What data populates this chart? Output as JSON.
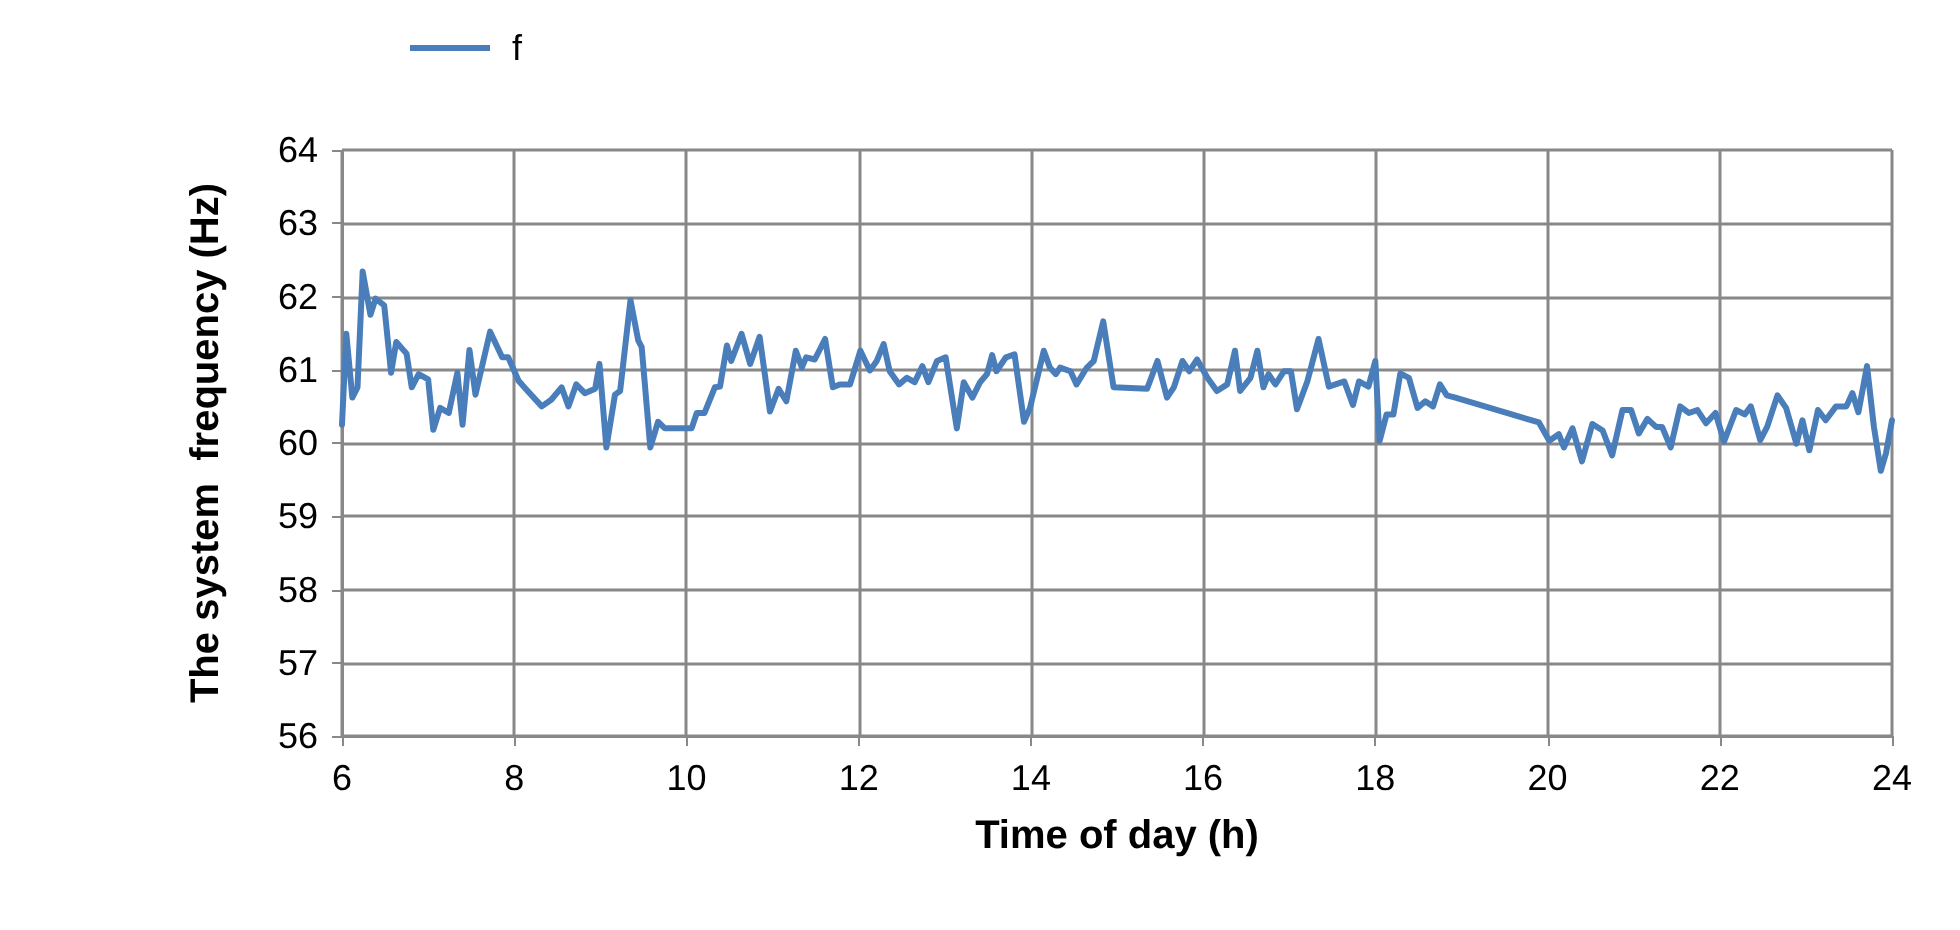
{
  "chart_data": {
    "type": "line",
    "xlabel": "Time of day (h)",
    "ylabel": "The system  frequency (Hz)",
    "xlim": [
      6,
      24
    ],
    "xticks": [
      6,
      8,
      10,
      12,
      14,
      16,
      18,
      20,
      22,
      24
    ],
    "ylim": [
      56,
      64
    ],
    "yticks": [
      56,
      57,
      58,
      59,
      60,
      61,
      62,
      63,
      64
    ],
    "grid": true,
    "legend": "top left",
    "marker": "none",
    "line_style": "solid",
    "series": [
      {
        "name": "f",
        "color": "#4a7ebb",
        "x": [
          6.0,
          6.05,
          6.12,
          6.18,
          6.24,
          6.33,
          6.39,
          6.49,
          6.57,
          6.63,
          6.75,
          6.81,
          6.89,
          7.0,
          7.06,
          7.14,
          7.24,
          7.34,
          7.4,
          7.48,
          7.55,
          7.72,
          7.86,
          7.93,
          8.05,
          8.14,
          8.32,
          8.43,
          8.55,
          8.63,
          8.72,
          8.82,
          8.94,
          8.99,
          9.07,
          9.17,
          9.23,
          9.35,
          9.44,
          9.48,
          9.58,
          9.67,
          9.75,
          10.06,
          10.12,
          10.21,
          10.33,
          10.39,
          10.47,
          10.52,
          10.64,
          10.74,
          10.85,
          10.97,
          11.07,
          11.16,
          11.27,
          11.34,
          11.39,
          11.49,
          11.61,
          11.7,
          11.78,
          11.9,
          12.02,
          12.13,
          12.21,
          12.29,
          12.36,
          12.47,
          12.56,
          12.65,
          12.74,
          12.81,
          12.91,
          13.01,
          13.14,
          13.22,
          13.32,
          13.41,
          13.49,
          13.55,
          13.6,
          13.71,
          13.81,
          13.92,
          13.99,
          14.15,
          14.22,
          14.29,
          14.34,
          14.46,
          14.53,
          14.65,
          14.73,
          14.84,
          14.96,
          15.35,
          15.47,
          15.58,
          15.66,
          15.76,
          15.84,
          15.93,
          16.05,
          16.16,
          16.28,
          16.37,
          16.43,
          16.55,
          16.63,
          16.7,
          16.76,
          16.84,
          16.94,
          17.02,
          17.09,
          17.21,
          17.34,
          17.46,
          17.64,
          17.74,
          17.81,
          17.92,
          18.0,
          18.05,
          18.13,
          18.21,
          18.29,
          18.39,
          18.49,
          18.58,
          18.67,
          18.75,
          18.83,
          18.93,
          19.9,
          20.02,
          20.13,
          20.19,
          20.29,
          20.4,
          20.52,
          20.64,
          20.75,
          20.87,
          20.97,
          21.06,
          21.16,
          21.26,
          21.33,
          21.43,
          21.54,
          21.64,
          21.74,
          21.84,
          21.95,
          22.05,
          22.19,
          22.29,
          22.36,
          22.47,
          22.55,
          22.67,
          22.77,
          22.89,
          22.96,
          23.04,
          23.14,
          23.23,
          23.35,
          23.47,
          23.54,
          23.61,
          23.71,
          23.79,
          23.87,
          23.93,
          24.0
        ],
        "values": [
          60.25,
          61.49,
          60.62,
          60.76,
          62.34,
          61.75,
          61.97,
          61.88,
          60.96,
          61.38,
          61.22,
          60.76,
          60.94,
          60.87,
          60.18,
          60.48,
          60.41,
          60.96,
          60.25,
          61.27,
          60.66,
          61.52,
          61.17,
          61.17,
          60.85,
          60.73,
          60.5,
          60.59,
          60.76,
          60.5,
          60.8,
          60.68,
          60.74,
          61.08,
          59.94,
          60.66,
          60.71,
          61.95,
          61.4,
          61.31,
          59.94,
          60.29,
          60.2,
          60.2,
          60.41,
          60.41,
          60.76,
          60.77,
          61.33,
          61.12,
          61.49,
          61.08,
          61.45,
          60.43,
          60.74,
          60.57,
          61.26,
          61.03,
          61.17,
          61.14,
          61.42,
          60.76,
          60.8,
          60.8,
          61.26,
          60.99,
          61.12,
          61.35,
          60.98,
          60.8,
          60.89,
          60.83,
          61.05,
          60.83,
          61.12,
          61.17,
          60.2,
          60.83,
          60.62,
          60.83,
          60.94,
          61.2,
          60.98,
          61.17,
          61.21,
          60.29,
          60.48,
          61.26,
          61.03,
          60.94,
          61.03,
          60.98,
          60.8,
          61.03,
          61.12,
          61.66,
          60.76,
          60.74,
          61.12,
          60.62,
          60.76,
          61.12,
          60.98,
          61.14,
          60.89,
          60.71,
          60.8,
          61.26,
          60.71,
          60.89,
          61.26,
          60.76,
          60.94,
          60.8,
          60.98,
          60.98,
          60.46,
          60.84,
          61.42,
          60.77,
          60.84,
          60.52,
          60.84,
          60.77,
          61.12,
          60.03,
          60.39,
          60.39,
          60.95,
          60.89,
          60.48,
          60.57,
          60.5,
          60.8,
          60.65,
          60.62,
          60.28,
          60.03,
          60.12,
          59.94,
          60.2,
          59.75,
          60.26,
          60.17,
          59.83,
          60.45,
          60.45,
          60.13,
          60.33,
          60.22,
          60.22,
          59.94,
          60.5,
          60.41,
          60.45,
          60.27,
          60.41,
          60.02,
          60.45,
          60.39,
          60.5,
          60.04,
          60.22,
          60.65,
          60.48,
          59.99,
          60.31,
          59.9,
          60.45,
          60.31,
          60.5,
          60.5,
          60.68,
          60.42,
          61.05,
          60.22,
          59.62,
          59.86,
          60.31
        ]
      }
    ]
  }
}
